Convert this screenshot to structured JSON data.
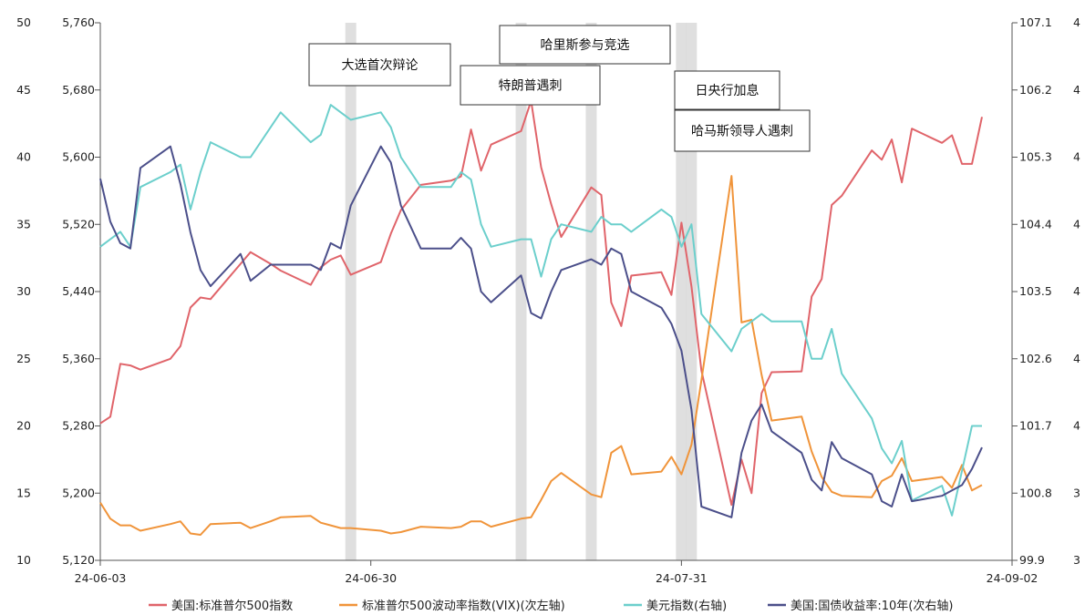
{
  "chart_data": {
    "type": "line",
    "title": "",
    "grid": false,
    "x_ticks": [
      "24-06-03",
      "24-06-30",
      "24-07-31",
      "24-09-02"
    ],
    "left_axis_vix": {
      "ticks": [
        "10",
        "15",
        "20",
        "25",
        "30",
        "35",
        "40",
        "45",
        "50"
      ],
      "range": [
        10,
        50
      ]
    },
    "left_axis_spx": {
      "ticks": [
        "5,120",
        "5,200",
        "5,280",
        "5,360",
        "5,440",
        "5,520",
        "5,600",
        "5,680",
        "5,760"
      ],
      "range": [
        5120,
        5760
      ]
    },
    "right_axis_dxy": {
      "ticks": [
        "99.9",
        "100.8",
        "101.7",
        "102.6",
        "103.5",
        "104.4",
        "105.3",
        "106.2",
        "107.1"
      ],
      "range": [
        99.9,
        107.1
      ]
    },
    "right_axis_yield": {
      "ticks": [
        "3",
        "3",
        "4",
        "4",
        "4",
        "4",
        "4",
        "4",
        "4"
      ]
    },
    "annotations": [
      {
        "text": "大选首次辩论",
        "date": "2024-06-28"
      },
      {
        "text": "哈里斯参与竞选",
        "date": "2024-07-22"
      },
      {
        "text": "特朗普遇刺",
        "date": "2024-07-15"
      },
      {
        "text": "日央行加息",
        "date": "2024-07-31"
      },
      {
        "text": "哈马斯领导人遇刺",
        "date": "2024-07-31"
      }
    ],
    "series": [
      {
        "name": "美国:标准普尔500指数",
        "axis": "spx",
        "color": "#e0646a",
        "points": [
          [
            "2024-06-03",
            5283
          ],
          [
            "2024-06-04",
            5291
          ],
          [
            "2024-06-05",
            5354
          ],
          [
            "2024-06-06",
            5352
          ],
          [
            "2024-06-07",
            5347
          ],
          [
            "2024-06-10",
            5360
          ],
          [
            "2024-06-11",
            5375
          ],
          [
            "2024-06-12",
            5421
          ],
          [
            "2024-06-13",
            5433
          ],
          [
            "2024-06-14",
            5431
          ],
          [
            "2024-06-17",
            5473
          ],
          [
            "2024-06-18",
            5487
          ],
          [
            "2024-06-20",
            5473
          ],
          [
            "2024-06-21",
            5465
          ],
          [
            "2024-06-24",
            5448
          ],
          [
            "2024-06-25",
            5469
          ],
          [
            "2024-06-26",
            5478
          ],
          [
            "2024-06-27",
            5483
          ],
          [
            "2024-06-28",
            5460
          ],
          [
            "2024-07-01",
            5475
          ],
          [
            "2024-07-02",
            5509
          ],
          [
            "2024-07-03",
            5537
          ],
          [
            "2024-07-05",
            5567
          ],
          [
            "2024-07-08",
            5572
          ],
          [
            "2024-07-09",
            5577
          ],
          [
            "2024-07-10",
            5633
          ],
          [
            "2024-07-11",
            5584
          ],
          [
            "2024-07-12",
            5615
          ],
          [
            "2024-07-15",
            5631
          ],
          [
            "2024-07-16",
            5667
          ],
          [
            "2024-07-17",
            5588
          ],
          [
            "2024-07-18",
            5544
          ],
          [
            "2024-07-19",
            5505
          ],
          [
            "2024-07-22",
            5564
          ],
          [
            "2024-07-23",
            5555
          ],
          [
            "2024-07-24",
            5427
          ],
          [
            "2024-07-25",
            5399
          ],
          [
            "2024-07-26",
            5459
          ],
          [
            "2024-07-29",
            5463
          ],
          [
            "2024-07-30",
            5436
          ],
          [
            "2024-07-31",
            5522
          ],
          [
            "2024-08-01",
            5446
          ],
          [
            "2024-08-02",
            5346
          ],
          [
            "2024-08-05",
            5186
          ],
          [
            "2024-08-06",
            5240
          ],
          [
            "2024-08-07",
            5200
          ],
          [
            "2024-08-08",
            5319
          ],
          [
            "2024-08-09",
            5344
          ],
          [
            "2024-08-12",
            5345
          ],
          [
            "2024-08-13",
            5434
          ],
          [
            "2024-08-14",
            5455
          ],
          [
            "2024-08-15",
            5543
          ],
          [
            "2024-08-16",
            5554
          ],
          [
            "2024-08-19",
            5608
          ],
          [
            "2024-08-20",
            5597
          ],
          [
            "2024-08-21",
            5621
          ],
          [
            "2024-08-22",
            5570
          ],
          [
            "2024-08-23",
            5634
          ],
          [
            "2024-08-26",
            5617
          ],
          [
            "2024-08-27",
            5626
          ],
          [
            "2024-08-28",
            5592
          ],
          [
            "2024-08-29",
            5592
          ],
          [
            "2024-08-30",
            5648
          ]
        ]
      },
      {
        "name": "标准普尔500波动率指数(VIX)(次左轴)",
        "axis": "vix",
        "color": "#f0943a",
        "points": [
          [
            "2024-06-03",
            14.3
          ],
          [
            "2024-06-04",
            13.1
          ],
          [
            "2024-06-05",
            12.6
          ],
          [
            "2024-06-06",
            12.6
          ],
          [
            "2024-06-07",
            12.2
          ],
          [
            "2024-06-10",
            12.7
          ],
          [
            "2024-06-11",
            12.9
          ],
          [
            "2024-06-12",
            12.0
          ],
          [
            "2024-06-13",
            11.9
          ],
          [
            "2024-06-14",
            12.7
          ],
          [
            "2024-06-17",
            12.8
          ],
          [
            "2024-06-18",
            12.4
          ],
          [
            "2024-06-20",
            12.9
          ],
          [
            "2024-06-21",
            13.2
          ],
          [
            "2024-06-24",
            13.3
          ],
          [
            "2024-06-25",
            12.8
          ],
          [
            "2024-06-26",
            12.6
          ],
          [
            "2024-06-27",
            12.4
          ],
          [
            "2024-06-28",
            12.4
          ],
          [
            "2024-07-01",
            12.2
          ],
          [
            "2024-07-02",
            12.0
          ],
          [
            "2024-07-03",
            12.1
          ],
          [
            "2024-07-05",
            12.5
          ],
          [
            "2024-07-08",
            12.4
          ],
          [
            "2024-07-09",
            12.5
          ],
          [
            "2024-07-10",
            12.9
          ],
          [
            "2024-07-11",
            12.9
          ],
          [
            "2024-07-12",
            12.5
          ],
          [
            "2024-07-15",
            13.1
          ],
          [
            "2024-07-16",
            13.2
          ],
          [
            "2024-07-17",
            14.5
          ],
          [
            "2024-07-18",
            15.9
          ],
          [
            "2024-07-19",
            16.5
          ],
          [
            "2024-07-22",
            14.9
          ],
          [
            "2024-07-23",
            14.7
          ],
          [
            "2024-07-24",
            18.0
          ],
          [
            "2024-07-25",
            18.5
          ],
          [
            "2024-07-26",
            16.4
          ],
          [
            "2024-07-29",
            16.6
          ],
          [
            "2024-07-30",
            17.7
          ],
          [
            "2024-07-31",
            16.4
          ],
          [
            "2024-08-01",
            18.6
          ],
          [
            "2024-08-02",
            23.4
          ],
          [
            "2024-08-05",
            38.6
          ],
          [
            "2024-08-06",
            27.7
          ],
          [
            "2024-08-07",
            27.9
          ],
          [
            "2024-08-08",
            23.8
          ],
          [
            "2024-08-09",
            20.4
          ],
          [
            "2024-08-12",
            20.7
          ],
          [
            "2024-08-13",
            18.1
          ],
          [
            "2024-08-14",
            16.2
          ],
          [
            "2024-08-15",
            15.1
          ],
          [
            "2024-08-16",
            14.8
          ],
          [
            "2024-08-19",
            14.7
          ],
          [
            "2024-08-20",
            15.9
          ],
          [
            "2024-08-21",
            16.3
          ],
          [
            "2024-08-22",
            17.6
          ],
          [
            "2024-08-23",
            15.9
          ],
          [
            "2024-08-26",
            16.2
          ],
          [
            "2024-08-27",
            15.4
          ],
          [
            "2024-08-28",
            17.1
          ],
          [
            "2024-08-29",
            15.2
          ],
          [
            "2024-08-30",
            15.6
          ]
        ]
      },
      {
        "name": "美元指数(右轴)",
        "axis": "dxy",
        "color": "#6ccfcc",
        "points": [
          [
            "2024-06-03",
            104.1
          ],
          [
            "2024-06-04",
            104.2
          ],
          [
            "2024-06-05",
            104.3
          ],
          [
            "2024-06-06",
            104.1
          ],
          [
            "2024-06-07",
            104.9
          ],
          [
            "2024-06-10",
            105.1
          ],
          [
            "2024-06-11",
            105.2
          ],
          [
            "2024-06-12",
            104.6
          ],
          [
            "2024-06-13",
            105.1
          ],
          [
            "2024-06-14",
            105.5
          ],
          [
            "2024-06-17",
            105.3
          ],
          [
            "2024-06-18",
            105.3
          ],
          [
            "2024-06-20",
            105.7
          ],
          [
            "2024-06-21",
            105.9
          ],
          [
            "2024-06-24",
            105.5
          ],
          [
            "2024-06-25",
            105.6
          ],
          [
            "2024-06-26",
            106.0
          ],
          [
            "2024-06-27",
            105.9
          ],
          [
            "2024-06-28",
            105.8
          ],
          [
            "2024-07-01",
            105.9
          ],
          [
            "2024-07-02",
            105.7
          ],
          [
            "2024-07-03",
            105.3
          ],
          [
            "2024-07-05",
            104.9
          ],
          [
            "2024-07-08",
            104.9
          ],
          [
            "2024-07-09",
            105.1
          ],
          [
            "2024-07-10",
            105.0
          ],
          [
            "2024-07-11",
            104.4
          ],
          [
            "2024-07-12",
            104.1
          ],
          [
            "2024-07-15",
            104.2
          ],
          [
            "2024-07-16",
            104.2
          ],
          [
            "2024-07-17",
            103.7
          ],
          [
            "2024-07-18",
            104.2
          ],
          [
            "2024-07-19",
            104.4
          ],
          [
            "2024-07-22",
            104.3
          ],
          [
            "2024-07-23",
            104.5
          ],
          [
            "2024-07-24",
            104.4
          ],
          [
            "2024-07-25",
            104.4
          ],
          [
            "2024-07-26",
            104.3
          ],
          [
            "2024-07-29",
            104.6
          ],
          [
            "2024-07-30",
            104.5
          ],
          [
            "2024-07-31",
            104.1
          ],
          [
            "2024-08-01",
            104.4
          ],
          [
            "2024-08-02",
            103.2
          ],
          [
            "2024-08-05",
            102.7
          ],
          [
            "2024-08-06",
            103.0
          ],
          [
            "2024-08-07",
            103.1
          ],
          [
            "2024-08-08",
            103.2
          ],
          [
            "2024-08-09",
            103.1
          ],
          [
            "2024-08-12",
            103.1
          ],
          [
            "2024-08-13",
            102.6
          ],
          [
            "2024-08-14",
            102.6
          ],
          [
            "2024-08-15",
            103.0
          ],
          [
            "2024-08-16",
            102.4
          ],
          [
            "2024-08-19",
            101.8
          ],
          [
            "2024-08-20",
            101.4
          ],
          [
            "2024-08-21",
            101.2
          ],
          [
            "2024-08-22",
            101.5
          ],
          [
            "2024-08-23",
            100.7
          ],
          [
            "2024-08-26",
            100.9
          ],
          [
            "2024-08-27",
            100.5
          ],
          [
            "2024-08-28",
            101.1
          ],
          [
            "2024-08-29",
            101.7
          ],
          [
            "2024-08-30",
            101.7
          ]
        ]
      },
      {
        "name": "美国:国债收益率:10年(次右轴)",
        "axis": "yield",
        "color": "#4b4f8a",
        "points": [
          [
            "2024-06-03",
            4.41
          ],
          [
            "2024-06-04",
            4.33
          ],
          [
            "2024-06-05",
            4.29
          ],
          [
            "2024-06-06",
            4.28
          ],
          [
            "2024-06-07",
            4.43
          ],
          [
            "2024-06-10",
            4.47
          ],
          [
            "2024-06-11",
            4.4
          ],
          [
            "2024-06-12",
            4.31
          ],
          [
            "2024-06-13",
            4.24
          ],
          [
            "2024-06-14",
            4.21
          ],
          [
            "2024-06-17",
            4.27
          ],
          [
            "2024-06-18",
            4.22
          ],
          [
            "2024-06-20",
            4.25
          ],
          [
            "2024-06-21",
            4.25
          ],
          [
            "2024-06-24",
            4.25
          ],
          [
            "2024-06-25",
            4.24
          ],
          [
            "2024-06-26",
            4.29
          ],
          [
            "2024-06-27",
            4.28
          ],
          [
            "2024-06-28",
            4.36
          ],
          [
            "2024-07-01",
            4.47
          ],
          [
            "2024-07-02",
            4.44
          ],
          [
            "2024-07-03",
            4.36
          ],
          [
            "2024-07-05",
            4.28
          ],
          [
            "2024-07-08",
            4.28
          ],
          [
            "2024-07-09",
            4.3
          ],
          [
            "2024-07-10",
            4.28
          ],
          [
            "2024-07-11",
            4.2
          ],
          [
            "2024-07-12",
            4.18
          ],
          [
            "2024-07-15",
            4.23
          ],
          [
            "2024-07-16",
            4.16
          ],
          [
            "2024-07-17",
            4.15
          ],
          [
            "2024-07-18",
            4.2
          ],
          [
            "2024-07-19",
            4.24
          ],
          [
            "2024-07-22",
            4.26
          ],
          [
            "2024-07-23",
            4.25
          ],
          [
            "2024-07-24",
            4.28
          ],
          [
            "2024-07-25",
            4.27
          ],
          [
            "2024-07-26",
            4.2
          ],
          [
            "2024-07-29",
            4.17
          ],
          [
            "2024-07-30",
            4.14
          ],
          [
            "2024-07-31",
            4.09
          ],
          [
            "2024-08-01",
            3.98
          ],
          [
            "2024-08-02",
            3.8
          ],
          [
            "2024-08-05",
            3.78
          ],
          [
            "2024-08-06",
            3.9
          ],
          [
            "2024-08-07",
            3.96
          ],
          [
            "2024-08-08",
            3.99
          ],
          [
            "2024-08-09",
            3.94
          ],
          [
            "2024-08-12",
            3.9
          ],
          [
            "2024-08-13",
            3.85
          ],
          [
            "2024-08-14",
            3.83
          ],
          [
            "2024-08-15",
            3.92
          ],
          [
            "2024-08-16",
            3.89
          ],
          [
            "2024-08-19",
            3.86
          ],
          [
            "2024-08-20",
            3.81
          ],
          [
            "2024-08-21",
            3.8
          ],
          [
            "2024-08-22",
            3.86
          ],
          [
            "2024-08-23",
            3.81
          ],
          [
            "2024-08-26",
            3.82
          ],
          [
            "2024-08-27",
            3.83
          ],
          [
            "2024-08-28",
            3.84
          ],
          [
            "2024-08-29",
            3.87
          ],
          [
            "2024-08-30",
            3.91
          ]
        ]
      }
    ],
    "legend_position": "bottom"
  }
}
